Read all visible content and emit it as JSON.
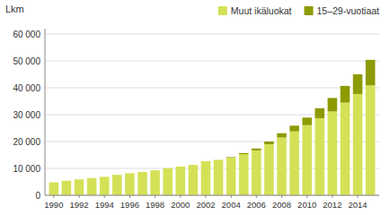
{
  "chart_data": {
    "type": "bar",
    "y_label": "Lkm",
    "x": [
      1990,
      1991,
      1992,
      1993,
      1994,
      1995,
      1996,
      1997,
      1998,
      1999,
      2000,
      2001,
      2002,
      2003,
      2004,
      2005,
      2006,
      2007,
      2008,
      2009,
      2010,
      2011,
      2012,
      2013,
      2014,
      2015
    ],
    "series": [
      {
        "name": "Muut ikäluokat",
        "color": "#d4e157",
        "values": [
          4800,
          5400,
          5900,
          6400,
          6900,
          7600,
          8200,
          8700,
          9300,
          10100,
          10700,
          11300,
          12700,
          13200,
          14000,
          15300,
          16700,
          19000,
          21500,
          23800,
          26100,
          28700,
          31200,
          34500,
          37700,
          40900
        ]
      },
      {
        "name": "15–29-vuotiaat",
        "color": "#8d9a00",
        "values": [
          0,
          0,
          0,
          0,
          0,
          0,
          0,
          0,
          0,
          0,
          0,
          0,
          0,
          0,
          200,
          400,
          700,
          1000,
          1600,
          2100,
          2800,
          3700,
          5000,
          6200,
          7300,
          9500
        ]
      }
    ],
    "stacked": true,
    "xlim": [
      1989.3,
      2015.7
    ],
    "xticks": [
      1990,
      1992,
      1994,
      1996,
      1998,
      2000,
      2002,
      2004,
      2006,
      2008,
      2010,
      2012,
      2014
    ],
    "ylim": [
      0,
      62000
    ],
    "yticks": [
      0,
      {
        "value": 10000,
        "label": "10 000"
      },
      {
        "value": 20000,
        "label": "20 000"
      },
      {
        "value": 30000,
        "label": "30 000"
      },
      {
        "value": 40000,
        "label": "40 000"
      },
      {
        "value": 50000,
        "label": "50 000"
      },
      {
        "value": 60000,
        "label": "60 000"
      }
    ],
    "grid": true,
    "legend": "upper right"
  }
}
